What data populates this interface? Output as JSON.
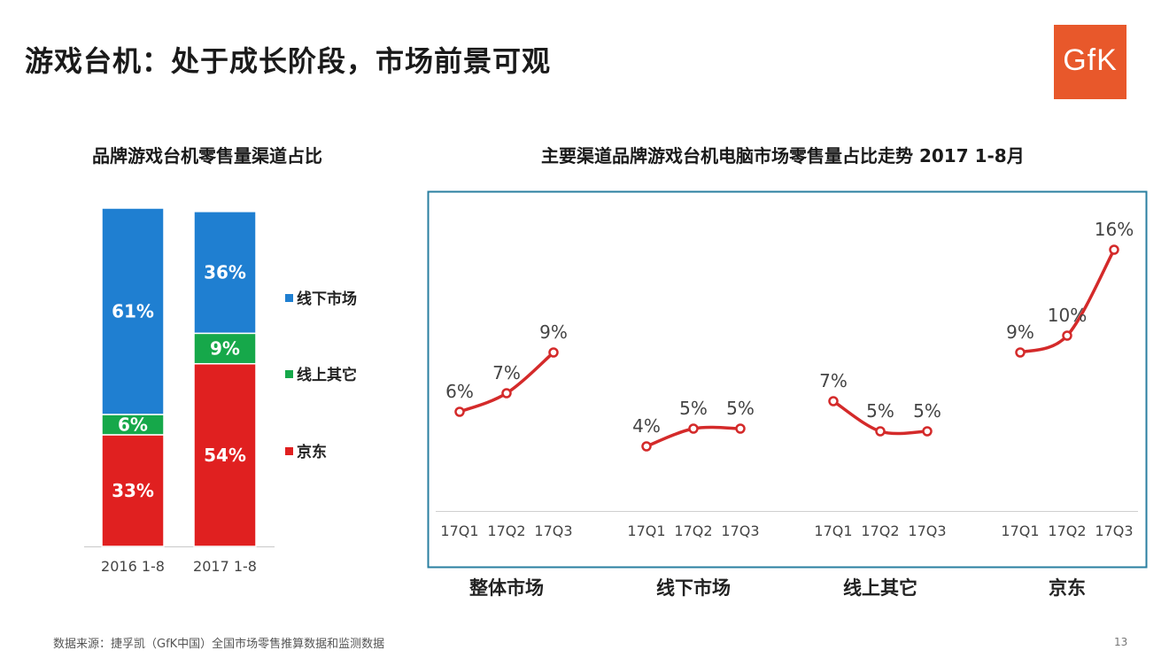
{
  "page": {
    "title": "游戏台机：处于成长阶段，市场前景可观",
    "logo_text": "GfK",
    "source": "数据来源：捷孚凯（GfK中国）全国市场零售推算数据和监测数据",
    "page_number": "13"
  },
  "chart_data": [
    {
      "type": "bar",
      "stacked": true,
      "title": "品牌游戏台机零售量渠道占比",
      "categories": [
        "2016 1-8",
        "2017 1-8"
      ],
      "series": [
        {
          "name": "京东",
          "color": "#e02020",
          "values": [
            33,
            54
          ],
          "labels": [
            "33%",
            "54%"
          ]
        },
        {
          "name": "线上其它",
          "color": "#16a84a",
          "values": [
            6,
            9
          ],
          "labels": [
            "6%",
            "9%"
          ]
        },
        {
          "name": "线下市场",
          "color": "#1f7fd1",
          "values": [
            61,
            36
          ],
          "labels": [
            "61%",
            "36%"
          ]
        }
      ],
      "legend_order": [
        "线下市场",
        "线上其它",
        "京东"
      ],
      "legend_position": "right",
      "unit": "%"
    },
    {
      "type": "line",
      "title": "主要渠道品牌游戏台机电脑市场零售量占比走势 2017 1-8月",
      "x": [
        "17Q1",
        "17Q2",
        "17Q3"
      ],
      "series": [
        {
          "name": "整体市场",
          "values": [
            6,
            7,
            9
          ],
          "labels": [
            "6%",
            "7%",
            "9%"
          ]
        },
        {
          "name": "线下市场",
          "values": [
            4,
            5,
            5
          ],
          "labels": [
            "4%",
            "5%",
            "5%"
          ]
        },
        {
          "name": "线上其它",
          "values": [
            7,
            5,
            5
          ],
          "labels": [
            "7%",
            "5%",
            "5%"
          ]
        },
        {
          "name": "京东",
          "values": [
            9,
            10,
            16
          ],
          "labels": [
            "9%",
            "10%",
            "16%"
          ]
        }
      ],
      "color": "#d42a2a",
      "unit": "%",
      "ylim": [
        0,
        18
      ],
      "grid": false
    }
  ]
}
